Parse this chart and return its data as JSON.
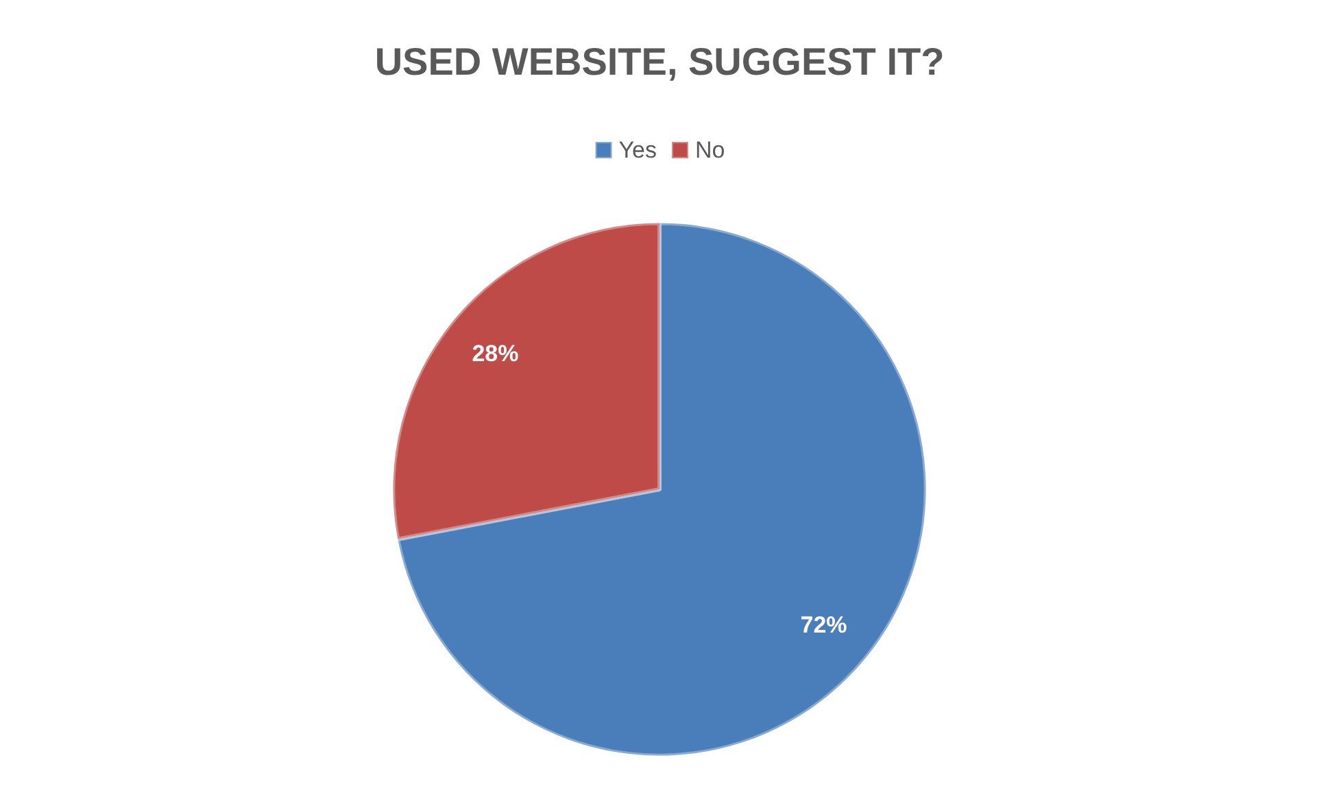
{
  "chart_data": {
    "type": "pie",
    "title": "USED WEBSITE, SUGGEST IT?",
    "categories": [
      "Yes",
      "No"
    ],
    "values": [
      72,
      28
    ],
    "colors": [
      "#4a7ebb",
      "#be4b48"
    ],
    "value_labels": [
      "72%",
      "28%"
    ],
    "legend": "top"
  }
}
